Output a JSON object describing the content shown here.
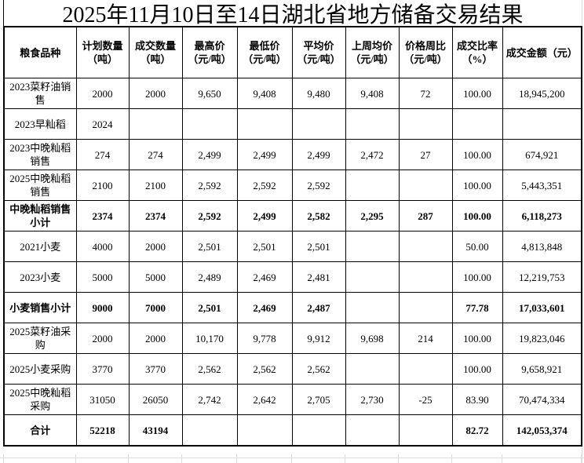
{
  "title": "2025年11月10日至14日湖北省地方储备交易结果",
  "colors": {
    "background": "#ffffff",
    "text": "#000000",
    "table_border": "#000000",
    "sheet_gridline": "#dcdcdc"
  },
  "table": {
    "columns": [
      {
        "label": "粮食品种",
        "sub": ""
      },
      {
        "label": "计划数量",
        "sub": "（吨）"
      },
      {
        "label": "成交数量",
        "sub": "（吨）"
      },
      {
        "label": "最高价",
        "sub": "（元/吨）"
      },
      {
        "label": "最低价",
        "sub": "（元/吨）"
      },
      {
        "label": "平均价",
        "sub": "（元/吨）"
      },
      {
        "label": "上周均价",
        "sub": "（元/吨）"
      },
      {
        "label": "价格周比",
        "sub": "（元/吨）"
      },
      {
        "label": "成交比率",
        "sub": "（%）"
      },
      {
        "label": "成交金额（元）",
        "sub": ""
      }
    ],
    "rows": [
      {
        "name": "2023菜籽油销售",
        "bold": false,
        "values": [
          "2000",
          "2000",
          "9,650",
          "9,408",
          "9,480",
          "9,408",
          "72",
          "100.00",
          "18,945,200"
        ]
      },
      {
        "name": "2023早籼稻",
        "bold": false,
        "values": [
          "2024",
          "",
          "",
          "",
          "",
          "",
          "",
          "",
          ""
        ]
      },
      {
        "name": "2023中晚籼稻销售",
        "bold": false,
        "values": [
          "274",
          "274",
          "2,499",
          "2,499",
          "2,499",
          "2,472",
          "27",
          "100.00",
          "674,921"
        ]
      },
      {
        "name": "2025中晚籼稻销售",
        "bold": false,
        "values": [
          "2100",
          "2100",
          "2,592",
          "2,592",
          "2,592",
          "",
          "",
          "100.00",
          "5,443,351"
        ]
      },
      {
        "name": "中晚籼稻销售小计",
        "bold": true,
        "values": [
          "2374",
          "2374",
          "2,592",
          "2,499",
          "2,582",
          "2,295",
          "287",
          "100.00",
          "6,118,273"
        ]
      },
      {
        "name": "2021小麦",
        "bold": false,
        "values": [
          "4000",
          "2000",
          "2,501",
          "2,501",
          "2,501",
          "",
          "",
          "50.00",
          "4,813,848"
        ]
      },
      {
        "name": "2023小麦",
        "bold": false,
        "values": [
          "5000",
          "5000",
          "2,489",
          "2,469",
          "2,481",
          "",
          "",
          "100.00",
          "12,219,753"
        ]
      },
      {
        "name": "小麦销售小计",
        "bold": true,
        "values": [
          "9000",
          "7000",
          "2,501",
          "2,469",
          "2,487",
          "",
          "",
          "77.78",
          "17,033,601"
        ]
      },
      {
        "name": "2025菜籽油采购",
        "bold": false,
        "values": [
          "2000",
          "2000",
          "10,170",
          "9,778",
          "9,912",
          "9,698",
          "214",
          "100.00",
          "19,823,046"
        ]
      },
      {
        "name": "2025小麦采购",
        "bold": false,
        "values": [
          "3770",
          "3770",
          "2,562",
          "2,562",
          "2,562",
          "",
          "",
          "100.00",
          "9,658,921"
        ]
      },
      {
        "name": "2025中晚籼稻采购",
        "bold": false,
        "values": [
          "31050",
          "26050",
          "2,742",
          "2,642",
          "2,705",
          "2,730",
          "-25",
          "83.90",
          "70,474,334"
        ]
      },
      {
        "name": "合计",
        "bold": true,
        "values": [
          "52218",
          "43194",
          "",
          "",
          "",
          "",
          "",
          "82.72",
          "142,053,374"
        ]
      }
    ]
  }
}
